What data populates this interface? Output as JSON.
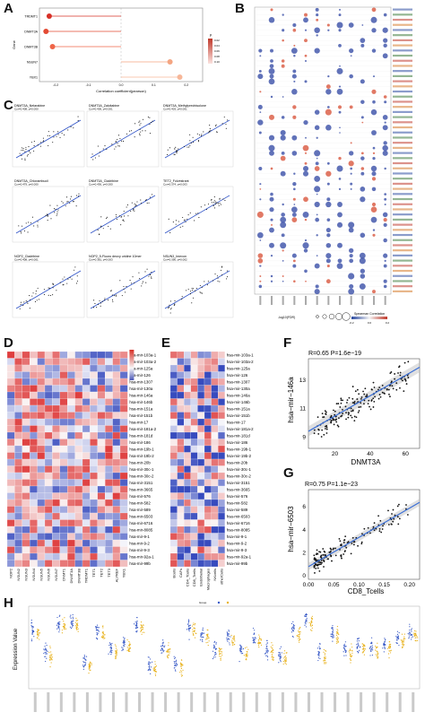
{
  "panels": {
    "A": "A",
    "B": "B",
    "C": "C",
    "D": "D",
    "E": "E",
    "F": "F",
    "G": "G",
    "H": "H"
  },
  "panelA": {
    "genes": [
      "TRDMT1",
      "DNMT3A",
      "DNMT3B",
      "NSUN7",
      "YBX1"
    ],
    "ylabel": "Gene",
    "xlabel": "Correlation coefficient(pearson)",
    "xticks": [
      "-0.2",
      "-0.1",
      "0.0",
      "0.1",
      "0.2"
    ],
    "legend_title": "p",
    "legend_values": [
      "0.02",
      "0.04",
      "0.06",
      "0.08",
      "0.10"
    ],
    "chart_data": {
      "type": "scatter",
      "categories": [
        "TRDMT1",
        "DNMT3A",
        "DNMT3B",
        "NSUN7",
        "YBX1"
      ],
      "values": [
        -0.22,
        -0.23,
        -0.21,
        0.15,
        0.18
      ],
      "xlim": [
        -0.25,
        0.25
      ],
      "colors": [
        "#d73027",
        "#e34a33",
        "#ef6548",
        "#f4a582",
        "#f7b799"
      ]
    }
  },
  "panelB": {
    "legend_p": "-log10(FDR)",
    "legend_corr": "Spearman Correlation",
    "legend_corr_ticks": [
      "-0.2",
      "0.0",
      "0.2"
    ]
  },
  "panelC": {
    "titles": [
      [
        "DNMT3A_Nelarabine",
        "Cor=0.408, p=0.000"
      ],
      [
        "DNMT3A_Zalcitabine",
        "Cor=0.406, p=0.001"
      ],
      [
        "DNMT3A_Methylprednisolone",
        "Cor=0.403, p=0.001"
      ],
      [
        "DNMT3A_Chlorambucil",
        "Cor=0.479, p=0.000"
      ],
      [
        "DNMT3A_Cladribine",
        "Cor=0.436, p=0.000"
      ],
      [
        "TET2_Fulvestrant",
        "Cor=0.374, p=0.003"
      ],
      [
        "NOP2_Cladribine",
        "Cor=0.408, p=0.001"
      ],
      [
        "NOP2_5-Fluoro deoxy uridine 10mer",
        "Cor=0.381, p=0.003"
      ],
      [
        "NSUN3_Imexon",
        "Cor=0.390, p=0.002"
      ]
    ]
  },
  "panelD": {
    "legend": [
      "0.6",
      "0.4",
      "0.2",
      "0",
      "-0.2",
      "-0.4"
    ],
    "cols": [
      "NOP2",
      "NSUN2",
      "NSUN3",
      "NSUN4",
      "NSUN5",
      "NSUN6",
      "NSUN7",
      "DNMT1",
      "DNMT3A",
      "DNMT3B",
      "TRDMT1",
      "TET1",
      "TET2",
      "TET3",
      "ALYREF",
      "YBX1"
    ]
  },
  "panelE": {
    "cols": [
      "Bcells",
      "CAFs",
      "CD4_Tcells",
      "CD8_Tcells",
      "Endothelial",
      "Macrophages",
      "NKcells",
      "otherCells"
    ]
  },
  "mirnas": [
    "hsa-mir-103a-1",
    "hsa-mir-103a-2",
    "hsa-mir-125a",
    "hsa-mir-126",
    "hsa-mir-1307",
    "hsa-mir-130a",
    "hsa-mir-146a",
    "hsa-mir-146b",
    "hsa-mir-151a",
    "hsa-mir-151b",
    "hsa-mir-17",
    "hsa-mir-181a-2",
    "hsa-mir-181d",
    "hsa-mir-186",
    "hsa-mir-19b-1",
    "hsa-mir-19b-2",
    "hsa-mir-20b",
    "hsa-mir-30c-1",
    "hsa-mir-30c-2",
    "hsa-mir-3151",
    "hsa-mir-3665",
    "hsa-mir-576",
    "hsa-mir-582",
    "hsa-mir-589",
    "hsa-mir-6503",
    "hsa-mir-6716",
    "hsa-mir-8085",
    "hsa-mir-9-1",
    "hsa-mir-9-2",
    "hsa-mir-9-3",
    "hsa-mir-92a-1",
    "hsa-mir-99b"
  ],
  "panelF": {
    "annotation": "R=0.65 P=1.6e−19",
    "xlabel": "DNMT3A",
    "ylabel": "hsa−mir−146a",
    "xticks": [
      "20",
      "40",
      "60"
    ],
    "yticks": [
      "9",
      "11",
      "13"
    ],
    "chart_data": {
      "type": "scatter",
      "xlim": [
        5,
        68
      ],
      "ylim": [
        8.2,
        14.5
      ],
      "fit": {
        "x": [
          5,
          68
        ],
        "y": [
          9.4,
          13.9
        ]
      }
    }
  },
  "panelG": {
    "annotation": "R=0.75 P=1.1e−23",
    "xlabel": "CD8_Tcells",
    "ylabel": "hsa−mir−6503",
    "xticks": [
      "0.00",
      "0.05",
      "0.10",
      "0.15",
      "0.20"
    ],
    "yticks": [
      "0",
      "2",
      "4",
      "6"
    ],
    "chart_data": {
      "type": "scatter",
      "xlim": [
        0,
        0.22
      ],
      "ylim": [
        -0.3,
        7.5
      ],
      "fit": {
        "x": [
          0,
          0.22
        ],
        "y": [
          0.8,
          6.4
        ]
      }
    }
  },
  "panelH": {
    "ylabel": "Expression Value",
    "legend": "Group",
    "colors": [
      "#3a5bc7",
      "#e8b321"
    ]
  }
}
